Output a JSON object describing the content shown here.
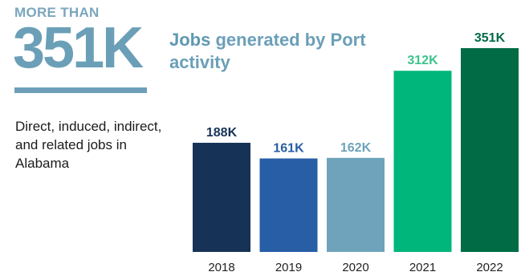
{
  "kicker": "MORE THAN",
  "big_number": "351K",
  "description": "Direct, induced, indirect, and related jobs in Alabama",
  "chart_title_accent": "Jobs",
  "chart_title_rest": " generated by Port activity",
  "chart_data": {
    "type": "bar",
    "title": "Jobs generated by Port activity",
    "xlabel": "",
    "ylabel": "",
    "categories": [
      "2018",
      "2019",
      "2020",
      "2021",
      "2022"
    ],
    "values": [
      188000,
      161000,
      162000,
      312000,
      351000
    ],
    "data_labels": [
      "188K",
      "161K",
      "162K",
      "312K",
      "351K"
    ],
    "ylim": [
      0,
      351000
    ],
    "grid": false,
    "colors": {
      "bars": [
        "#163357",
        "#275ea6",
        "#6ea3bb",
        "#00b67a",
        "#006b45"
      ],
      "labels": [
        "#163357",
        "#275ea6",
        "#6ea3bb",
        "#3cc48d",
        "#006b45"
      ]
    }
  }
}
